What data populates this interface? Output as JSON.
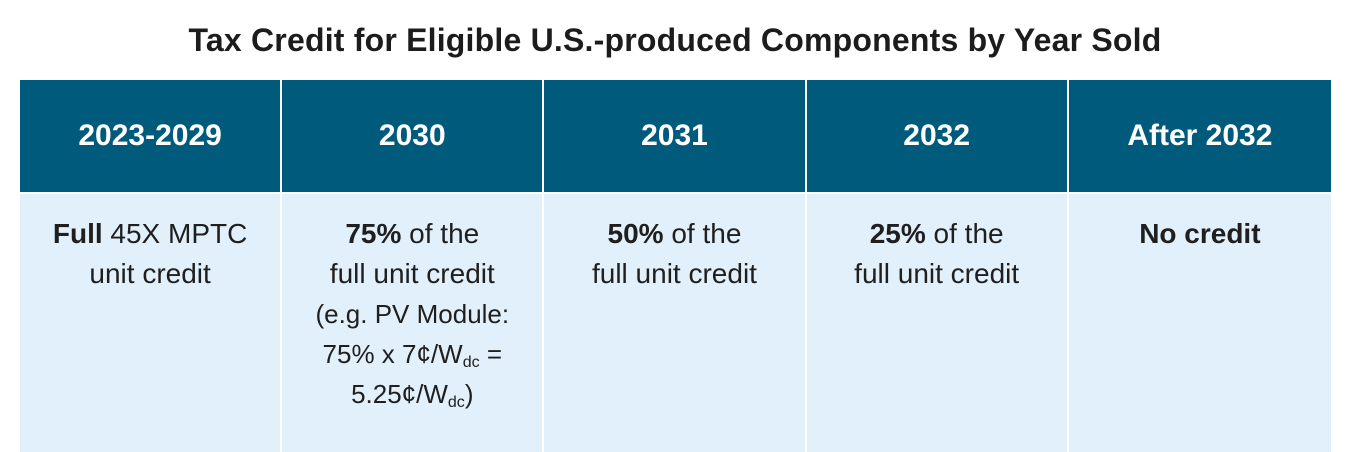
{
  "title": "Tax Credit for Eligible U.S.-produced Components by Year Sold",
  "table": {
    "headers": [
      "2023-2029",
      "2030",
      "2031",
      "2032",
      "After 2032"
    ],
    "cells": [
      {
        "bold": "Full",
        "rest": " 45X MPTC",
        "line2": "unit credit"
      },
      {
        "bold": "75%",
        "rest": " of the",
        "line2": "full unit credit",
        "example": {
          "line1": "(e.g. PV Module:",
          "line2_a": "75% x 7¢/W",
          "line2_sub": "dc",
          "line2_b": " =",
          "line3_a": "5.25¢/W",
          "line3_sub": "dc",
          "line3_b": ")"
        }
      },
      {
        "bold": "50%",
        "rest": " of the",
        "line2": "full unit credit"
      },
      {
        "bold": "25%",
        "rest": " of the",
        "line2": "full unit credit"
      },
      {
        "bold": "No credit",
        "rest": "",
        "line2": ""
      }
    ]
  },
  "colors": {
    "header_bg": "#005a7c",
    "body_bg": "#e1f0fa",
    "header_text": "#ffffff",
    "body_text": "#1f1f1f"
  }
}
